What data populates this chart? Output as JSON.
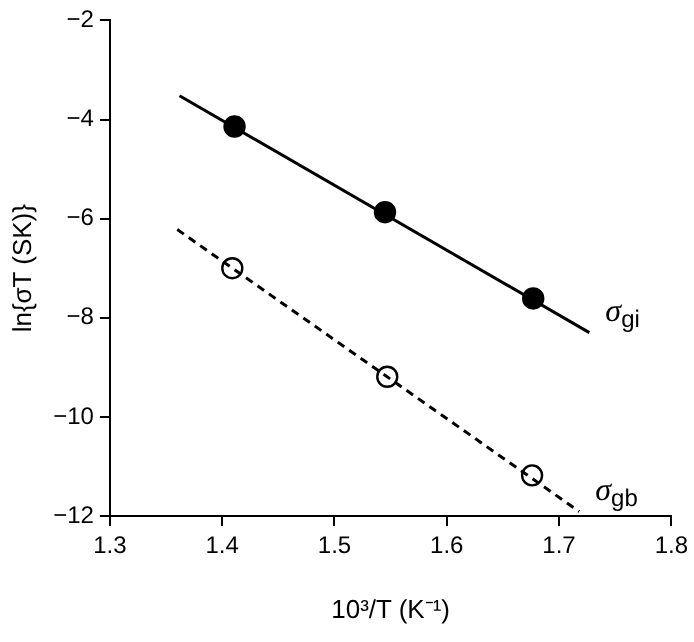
{
  "chart_data": {
    "type": "scatter",
    "xlabel": "10³/T (K⁻¹)",
    "ylabel": "ln{σT (SK)}",
    "xlim": [
      1.3,
      1.8
    ],
    "xticks": [
      1.3,
      1.4,
      1.5,
      1.6,
      1.7,
      1.8
    ],
    "ylim": [
      -12,
      -2
    ],
    "yticks": [
      -12,
      -10,
      -8,
      -6,
      -4,
      -2
    ],
    "grid": false,
    "legend": false,
    "series": [
      {
        "type": "line",
        "name": "σ$_{gi}$",
        "color": "#000000",
        "line_style": "solid",
        "marker": "none",
        "x": [
          1.362,
          1.727
        ],
        "values": [
          -3.52,
          -8.3
        ]
      },
      {
        "type": "line",
        "name": "σ$_{gb}$",
        "color": "#000000",
        "line_style": "dashed",
        "marker": "none",
        "x": [
          1.36,
          1.718
        ],
        "values": [
          -6.22,
          -11.91
        ]
      },
      {
        "type": "scatter",
        "color": "#000000",
        "marker": "circle",
        "x": [
          1.411,
          1.545,
          1.677
        ],
        "values": [
          -4.14,
          -5.87,
          -7.61
        ]
      },
      {
        "type": "scatter",
        "color": "#ffffff",
        "marker": "circle",
        "x": [
          1.409,
          1.547,
          1.676
        ],
        "values": [
          -7.0,
          -9.19,
          -11.18
        ]
      }
    ]
  }
}
